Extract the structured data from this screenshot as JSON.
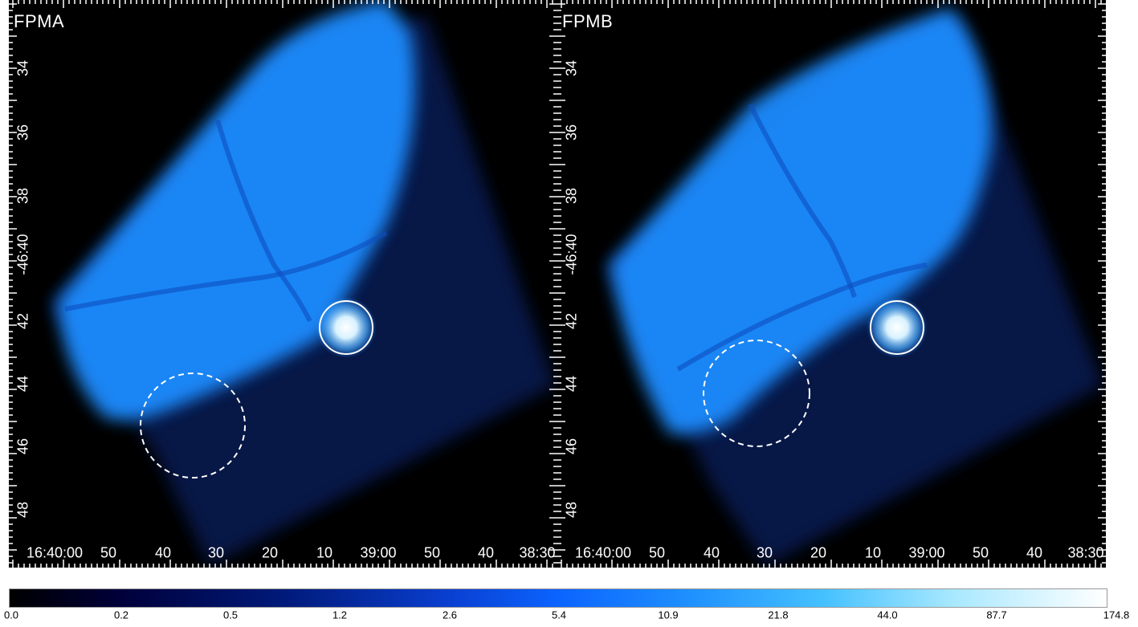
{
  "panels": [
    {
      "label": "FPMA",
      "y_ticks": [
        "34",
        "36",
        "38",
        "-46:40",
        "42",
        "44",
        "46",
        "48"
      ],
      "x_ticks": [
        "16:40:00",
        "50",
        "40",
        "30",
        "20",
        "10",
        "39:00",
        "50",
        "40",
        "38:30"
      ]
    },
    {
      "label": "FPMB",
      "y_ticks": [
        "34",
        "36",
        "38",
        "-46:40",
        "42",
        "44",
        "46",
        "48"
      ],
      "x_ticks": [
        "16:40:00",
        "50",
        "40",
        "30",
        "20",
        "10",
        "39:00",
        "50",
        "40",
        "38:30"
      ]
    }
  ],
  "colorbar": {
    "labels": [
      "0.0",
      "0.2",
      "0.5",
      "1.2",
      "2.6",
      "5.4",
      "10.9",
      "21.8",
      "44.0",
      "87.7",
      "174.8"
    ]
  },
  "colors": {
    "background": "#000000",
    "diffuse_glow": "#1f8cff",
    "outer_field": "#0a2a80",
    "source_core": "#ffffff",
    "region_outline": "#ffffff"
  }
}
